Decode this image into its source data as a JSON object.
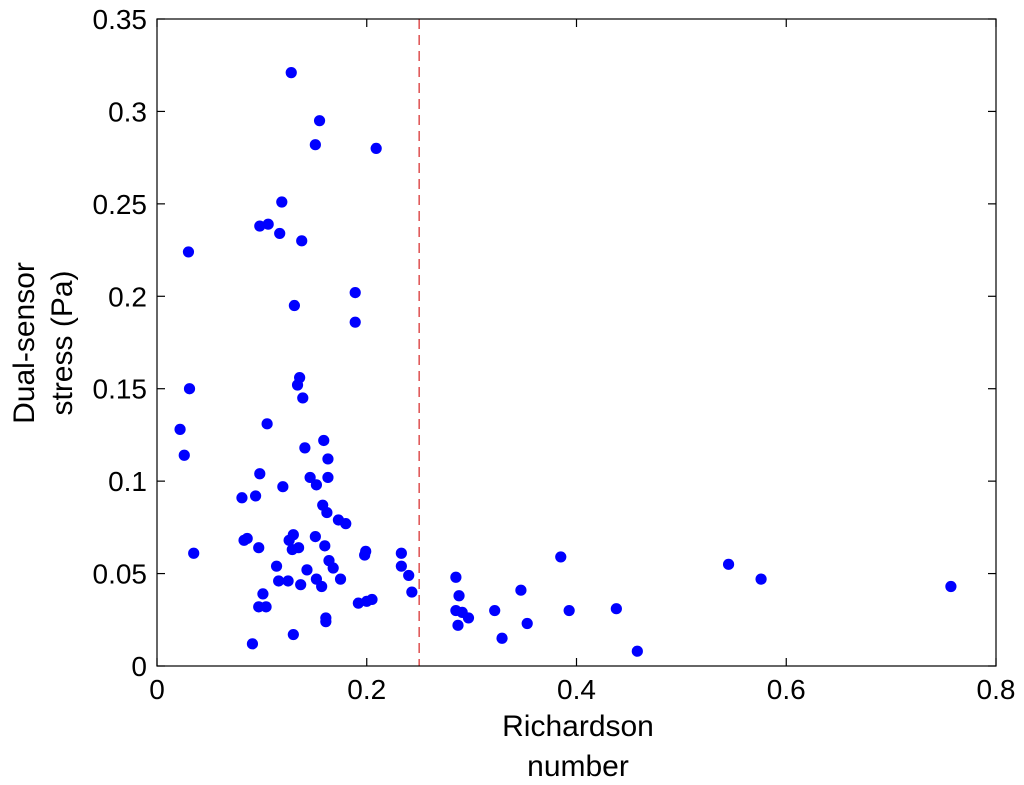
{
  "chart_data": {
    "type": "scatter",
    "xlabel": [
      "Richardson",
      "number"
    ],
    "ylabel": [
      "Dual-sensor",
      "stress (Pa)"
    ],
    "xlim": [
      0,
      0.8
    ],
    "ylim": [
      0,
      0.35
    ],
    "xticks": [
      0,
      0.2,
      0.4,
      0.6,
      0.8
    ],
    "xtick_labels": [
      "0",
      "0.2",
      "0.4",
      "0.6",
      "0.8"
    ],
    "yticks": [
      0,
      0.05,
      0.1,
      0.15,
      0.2,
      0.25,
      0.3,
      0.35
    ],
    "ytick_labels": [
      "0",
      "0.05",
      "0.1",
      "0.15",
      "0.2",
      "0.25",
      "0.3",
      "0.35"
    ],
    "grid": false,
    "box": true,
    "threshold_line": {
      "x": 0.25,
      "style": "dashed",
      "color": "#e05a5a"
    },
    "series": [
      {
        "color": "#0000ff",
        "marker": "circle",
        "points": [
          [
            0.022,
            0.128
          ],
          [
            0.026,
            0.114
          ],
          [
            0.03,
            0.224
          ],
          [
            0.031,
            0.15
          ],
          [
            0.035,
            0.061
          ],
          [
            0.081,
            0.091
          ],
          [
            0.083,
            0.068
          ],
          [
            0.086,
            0.069
          ],
          [
            0.091,
            0.012
          ],
          [
            0.094,
            0.092
          ],
          [
            0.097,
            0.032
          ],
          [
            0.097,
            0.064
          ],
          [
            0.098,
            0.104
          ],
          [
            0.098,
            0.238
          ],
          [
            0.101,
            0.039
          ],
          [
            0.104,
            0.032
          ],
          [
            0.105,
            0.131
          ],
          [
            0.106,
            0.239
          ],
          [
            0.114,
            0.054
          ],
          [
            0.116,
            0.046
          ],
          [
            0.117,
            0.234
          ],
          [
            0.119,
            0.251
          ],
          [
            0.12,
            0.097
          ],
          [
            0.125,
            0.046
          ],
          [
            0.126,
            0.068
          ],
          [
            0.128,
            0.321
          ],
          [
            0.129,
            0.063
          ],
          [
            0.13,
            0.071
          ],
          [
            0.13,
            0.017
          ],
          [
            0.131,
            0.195
          ],
          [
            0.134,
            0.152
          ],
          [
            0.135,
            0.064
          ],
          [
            0.136,
            0.156
          ],
          [
            0.137,
            0.044
          ],
          [
            0.138,
            0.23
          ],
          [
            0.139,
            0.145
          ],
          [
            0.141,
            0.118
          ],
          [
            0.143,
            0.052
          ],
          [
            0.146,
            0.102
          ],
          [
            0.151,
            0.282
          ],
          [
            0.151,
            0.07
          ],
          [
            0.152,
            0.047
          ],
          [
            0.152,
            0.098
          ],
          [
            0.155,
            0.295
          ],
          [
            0.157,
            0.043
          ],
          [
            0.158,
            0.087
          ],
          [
            0.159,
            0.122
          ],
          [
            0.16,
            0.065
          ],
          [
            0.161,
            0.026
          ],
          [
            0.161,
            0.024
          ],
          [
            0.162,
            0.083
          ],
          [
            0.163,
            0.112
          ],
          [
            0.163,
            0.102
          ],
          [
            0.164,
            0.057
          ],
          [
            0.168,
            0.053
          ],
          [
            0.173,
            0.079
          ],
          [
            0.175,
            0.047
          ],
          [
            0.18,
            0.077
          ],
          [
            0.189,
            0.202
          ],
          [
            0.189,
            0.186
          ],
          [
            0.192,
            0.034
          ],
          [
            0.198,
            0.06
          ],
          [
            0.199,
            0.062
          ],
          [
            0.2,
            0.035
          ],
          [
            0.205,
            0.036
          ],
          [
            0.209,
            0.28
          ],
          [
            0.233,
            0.061
          ],
          [
            0.233,
            0.054
          ],
          [
            0.24,
            0.049
          ],
          [
            0.243,
            0.04
          ],
          [
            0.285,
            0.048
          ],
          [
            0.285,
            0.03
          ],
          [
            0.287,
            0.022
          ],
          [
            0.288,
            0.038
          ],
          [
            0.291,
            0.029
          ],
          [
            0.297,
            0.026
          ],
          [
            0.322,
            0.03
          ],
          [
            0.329,
            0.015
          ],
          [
            0.347,
            0.041
          ],
          [
            0.353,
            0.023
          ],
          [
            0.385,
            0.059
          ],
          [
            0.393,
            0.03
          ],
          [
            0.438,
            0.031
          ],
          [
            0.458,
            0.008
          ],
          [
            0.545,
            0.055
          ],
          [
            0.576,
            0.047
          ],
          [
            0.757,
            0.043
          ]
        ]
      }
    ]
  }
}
